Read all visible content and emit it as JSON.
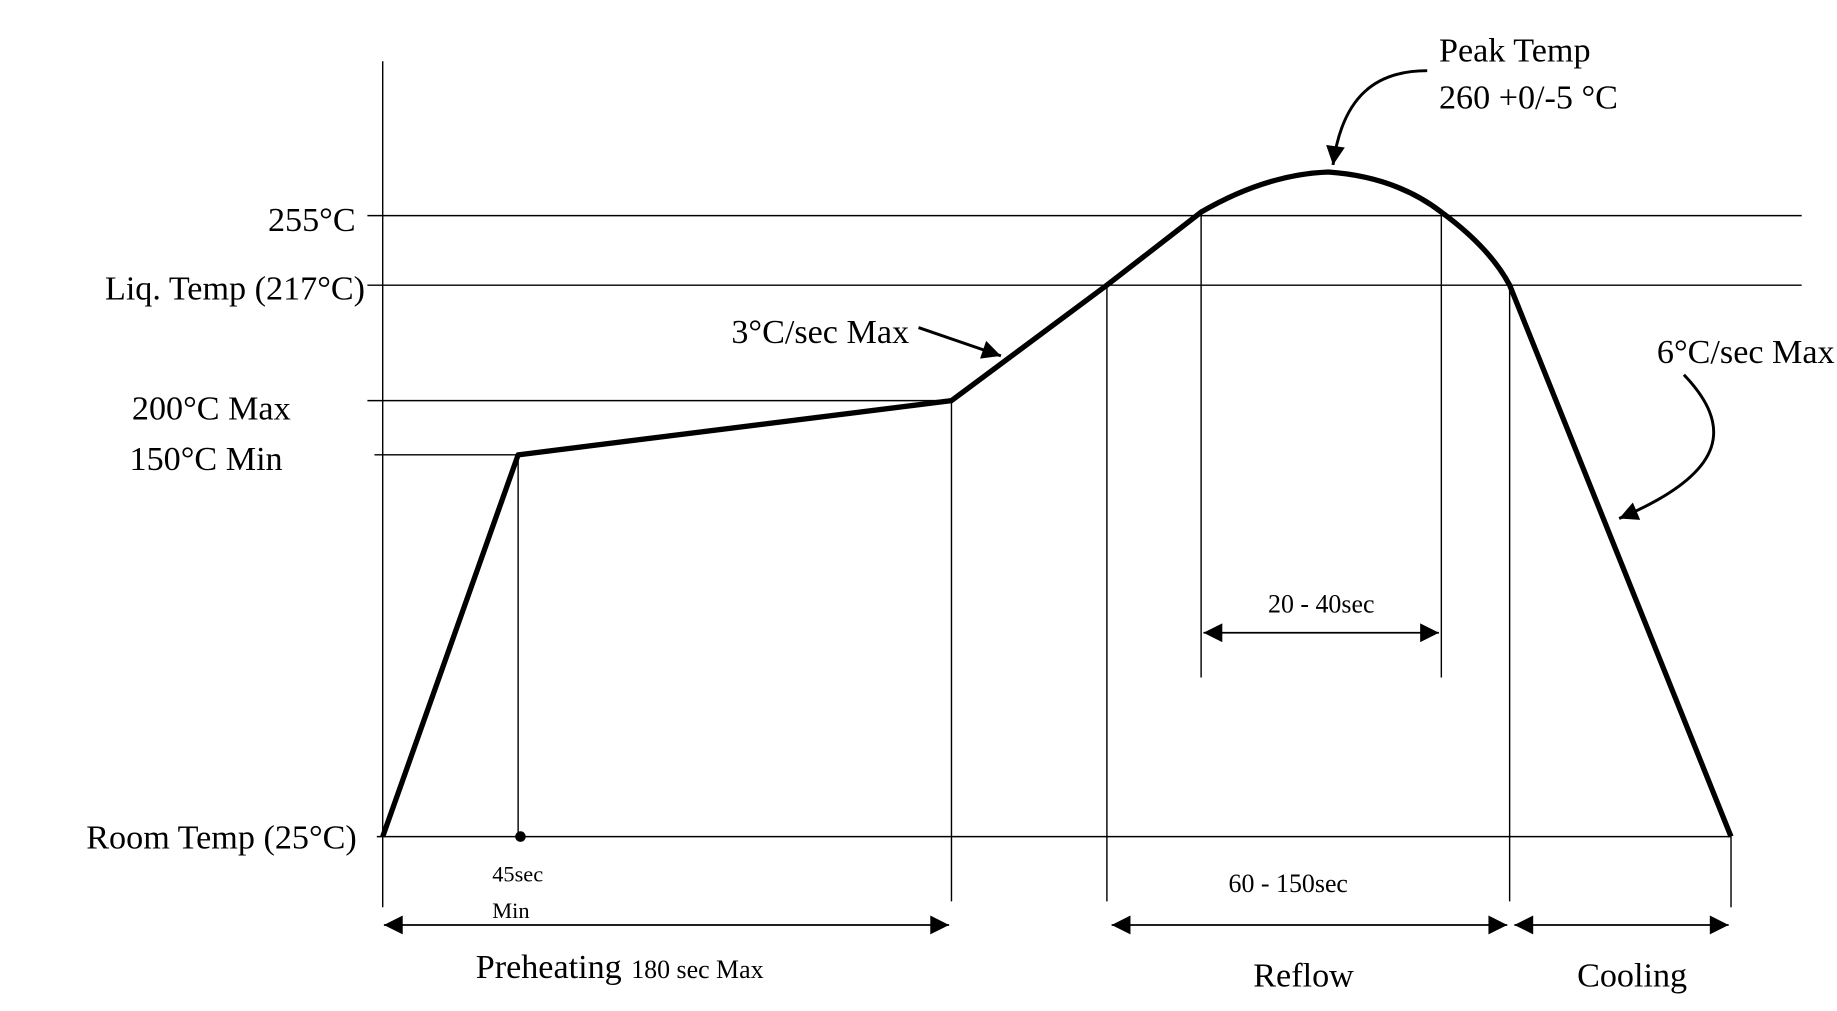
{
  "chart_data": {
    "type": "line",
    "title": "",
    "y_levels": [
      {
        "value": 255,
        "label": "255°C"
      },
      {
        "value": 217,
        "label": "Liq. Temp (217°C)"
      },
      {
        "value": 200,
        "label": "200°C Max"
      },
      {
        "value": 150,
        "label": "150°C Min"
      },
      {
        "value": 25,
        "label": "Room Temp (25°C)"
      }
    ],
    "profile_temps": [
      25,
      150,
      200,
      217,
      255,
      260,
      255,
      217,
      25
    ],
    "annotations": {
      "peak_line1": "Peak Temp",
      "peak_line2": "260 +0/-5 °C",
      "ramp_up": "3°C/sec Max",
      "ramp_down": "6°C/sec Max",
      "above_255": "20 - 40sec",
      "above_liquidus": "60 - 150sec",
      "min_time_line1": "45sec",
      "min_time_line2": "Min"
    },
    "phases": {
      "preheating": "Preheating",
      "preheating_detail": "180 sec Max",
      "reflow": "Reflow",
      "cooling": "Cooling"
    }
  }
}
